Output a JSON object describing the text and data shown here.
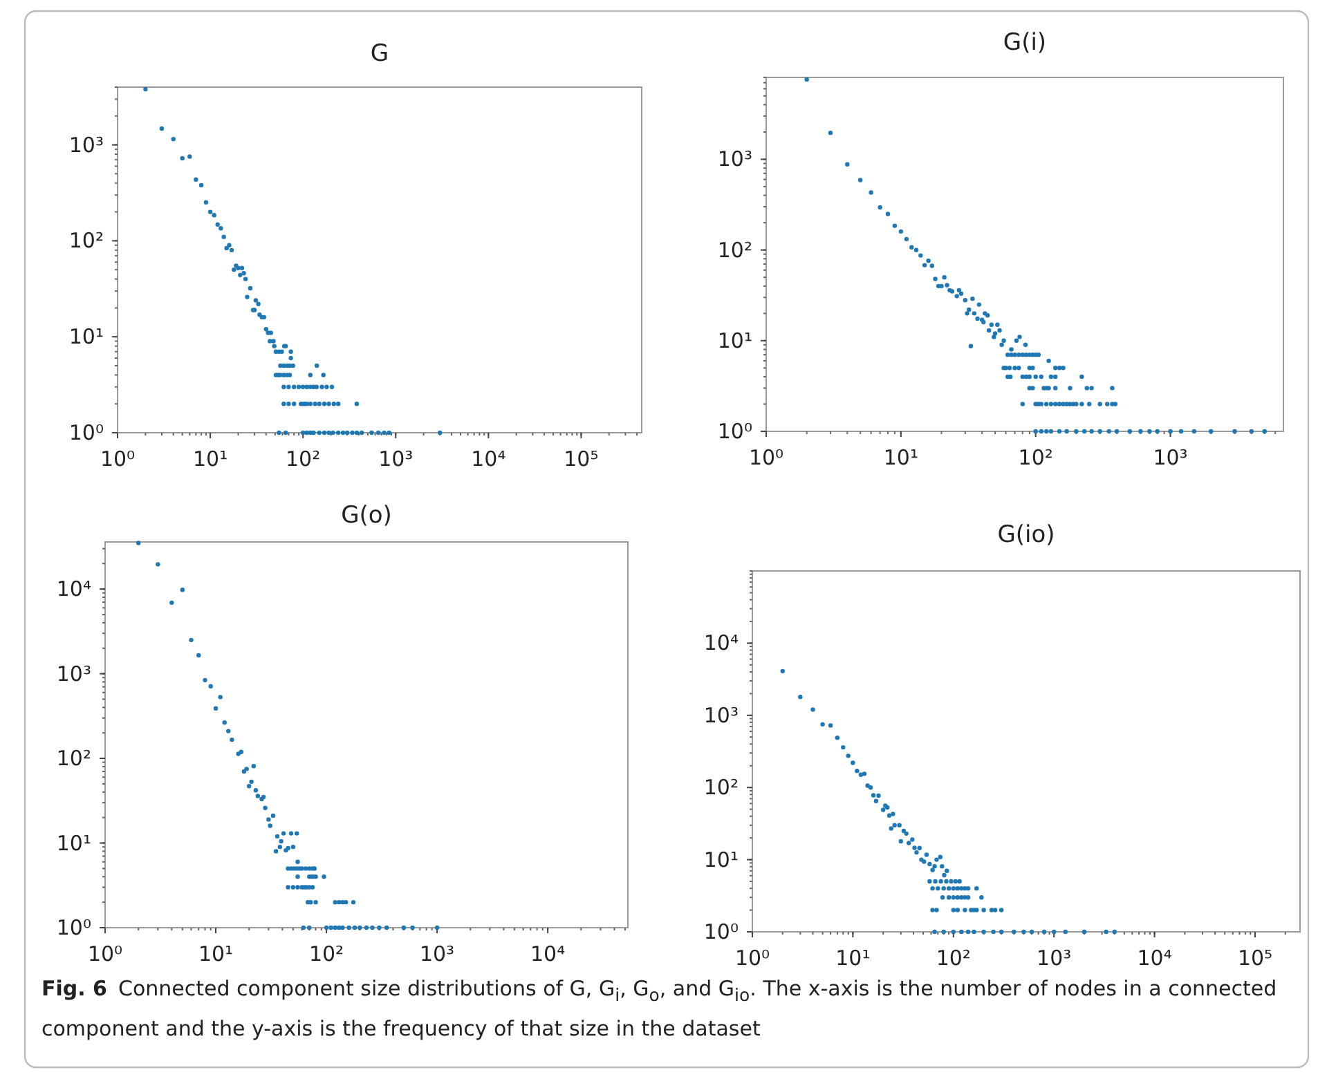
{
  "chart_data": [
    {
      "type": "scatter",
      "title": "G",
      "log": "xy",
      "marker": "circle",
      "color": "#1f77b4",
      "xlim": [
        1,
        450000
      ],
      "ylim": [
        1,
        4000
      ],
      "xticks": [
        {
          "value": 1,
          "label": "10⁰"
        },
        {
          "value": 10,
          "label": "10¹"
        },
        {
          "value": 100,
          "label": "10²"
        },
        {
          "value": 1000,
          "label": "10³"
        },
        {
          "value": 10000,
          "label": "10⁴"
        },
        {
          "value": 100000,
          "label": "10⁵"
        }
      ],
      "yticks": [
        {
          "value": 1,
          "label": "10⁰"
        },
        {
          "value": 10,
          "label": "10¹"
        },
        {
          "value": 100,
          "label": "10²"
        },
        {
          "value": 1000,
          "label": "10³"
        }
      ],
      "x": [
        2,
        3,
        4,
        5,
        6,
        7,
        8,
        9,
        10,
        11,
        12,
        13,
        14,
        15,
        16,
        17,
        18,
        19,
        20,
        21,
        22,
        23,
        24,
        25,
        27,
        29,
        30,
        31,
        33,
        34,
        36,
        38,
        40,
        42,
        44,
        45,
        48,
        49,
        51,
        55,
        59,
        63,
        65,
        74,
        74,
        57,
        62,
        67,
        72,
        78,
        141,
        51,
        54,
        57,
        62,
        67,
        72,
        120,
        166,
        62,
        70,
        80,
        90,
        100,
        110,
        120,
        130,
        140,
        160,
        180,
        205,
        62,
        70,
        80,
        95,
        100,
        105,
        110,
        120,
        135,
        150,
        170,
        190,
        215,
        240,
        380,
        55,
        65,
        100,
        110,
        120,
        130,
        150,
        170,
        190,
        210,
        240,
        270,
        300,
        340,
        380,
        430,
        550,
        650,
        750,
        850,
        3000
      ],
      "values": [
        3800,
        1480,
        1150,
        725,
        755,
        435,
        380,
        252,
        200,
        185,
        148,
        135,
        110,
        84,
        90,
        80,
        50,
        55,
        52,
        44,
        52,
        46,
        40,
        26,
        32,
        19,
        19,
        24,
        22,
        17,
        16,
        16,
        12,
        11,
        9,
        11,
        9,
        8,
        7,
        7,
        7,
        8,
        8,
        7,
        6,
        5,
        5,
        5,
        5,
        5,
        5,
        4,
        4,
        4,
        4,
        4,
        4,
        4,
        4,
        3,
        3,
        3,
        3,
        3,
        3,
        3,
        3,
        3,
        3,
        3,
        3,
        2,
        2,
        2,
        2,
        2,
        2,
        2,
        2,
        2,
        2,
        2,
        2,
        2,
        2,
        2,
        1,
        1,
        1,
        1,
        1,
        1,
        1,
        1,
        1,
        1,
        1,
        1,
        1,
        1,
        1,
        1,
        1,
        1,
        1,
        1,
        1
      ],
      "annotations": [
        "Fig. 6",
        "Connected component size distributions of G, G$_{i}$, G$_{o}$, and G$_{io}$. The x-axis is the number of nodes in a connected component and the y-axis is the frequency of that size in the dataset"
      ]
    },
    {
      "type": "scatter",
      "title": "G(i)",
      "log": "xy",
      "marker": "circle",
      "color": "#1f77b4",
      "xlim": [
        1,
        6900
      ],
      "ylim": [
        1,
        8000
      ],
      "xticks": [
        {
          "value": 1,
          "label": "10⁰"
        },
        {
          "value": 10,
          "label": "10¹"
        },
        {
          "value": 100,
          "label": "10²"
        },
        {
          "value": 1000,
          "label": "10³"
        }
      ],
      "yticks": [
        {
          "value": 1,
          "label": "10⁰"
        },
        {
          "value": 10,
          "label": "10¹"
        },
        {
          "value": 100,
          "label": "10²"
        },
        {
          "value": 1000,
          "label": "10³"
        }
      ],
      "x": [
        2,
        3,
        4,
        5,
        6,
        7,
        8,
        9,
        10,
        11,
        12,
        13,
        14,
        15,
        16,
        17,
        18,
        19,
        20,
        21,
        22,
        23,
        24,
        26,
        27,
        28,
        30,
        31,
        32,
        33,
        34,
        35,
        37,
        38,
        40,
        41,
        42,
        44,
        45,
        47,
        49,
        50,
        52,
        54,
        56,
        58,
        64,
        66,
        72,
        76,
        84,
        62,
        66,
        70,
        75,
        80,
        85,
        90,
        95,
        100,
        105,
        125,
        58,
        60,
        70,
        75,
        90,
        95,
        140,
        150,
        160,
        62,
        65,
        80,
        85,
        90,
        100,
        110,
        130,
        140,
        220,
        90,
        95,
        115,
        120,
        125,
        140,
        180,
        240,
        260,
        370,
        80,
        100,
        105,
        110,
        120,
        130,
        140,
        150,
        160,
        170,
        180,
        190,
        200,
        220,
        250,
        300,
        340,
        370,
        390,
        100,
        110,
        120,
        130,
        150,
        170,
        200,
        230,
        260,
        300,
        350,
        400,
        500,
        600,
        700,
        800,
        1000,
        1200,
        1500,
        2000,
        3000,
        4000,
        5000
      ],
      "values": [
        7600,
        1960,
        880,
        590,
        430,
        295,
        250,
        185,
        160,
        132,
        107,
        100,
        87,
        68,
        76,
        67,
        48,
        40,
        40,
        50,
        41,
        36,
        35,
        31,
        36,
        33,
        28,
        20,
        22,
        8.7,
        29,
        20,
        17.5,
        25,
        17,
        16,
        20,
        19,
        13,
        15,
        11,
        12,
        15,
        13,
        9,
        10,
        5,
        8,
        10,
        11,
        9,
        7,
        7,
        7,
        7,
        7,
        7,
        7,
        7,
        7,
        7,
        6,
        5,
        5,
        5,
        5,
        5,
        5,
        5,
        5,
        5,
        4,
        4,
        4,
        4,
        4,
        4,
        4,
        4,
        4,
        4,
        3,
        3,
        3,
        3,
        3,
        3,
        3,
        3,
        3,
        3,
        2,
        2,
        2,
        2,
        2,
        2,
        2,
        2,
        2,
        2,
        2,
        2,
        2,
        2,
        2,
        2,
        2,
        2,
        2,
        1,
        1,
        1,
        1,
        1,
        1,
        1,
        1,
        1,
        1,
        1,
        1,
        1,
        1,
        1,
        1,
        1,
        1,
        1,
        1,
        1,
        1,
        1
      ]
    },
    {
      "type": "scatter",
      "title": "G(o)",
      "log": "xy",
      "marker": "circle",
      "color": "#1f77b4",
      "xlim": [
        1,
        53000
      ],
      "ylim": [
        1,
        36000
      ],
      "xticks": [
        {
          "value": 1,
          "label": "10⁰"
        },
        {
          "value": 10,
          "label": "10¹"
        },
        {
          "value": 100,
          "label": "10²"
        },
        {
          "value": 1000,
          "label": "10³"
        },
        {
          "value": 10000,
          "label": "10⁴"
        }
      ],
      "yticks": [
        {
          "value": 1,
          "label": "10⁰"
        },
        {
          "value": 10,
          "label": "10¹"
        },
        {
          "value": 100,
          "label": "10²"
        },
        {
          "value": 1000,
          "label": "10³"
        },
        {
          "value": 10000,
          "label": "10⁴"
        }
      ],
      "x": [
        2,
        3,
        4,
        5,
        6,
        7,
        8,
        9,
        10,
        11,
        12,
        13,
        14,
        16,
        17,
        18,
        19,
        20,
        21,
        22,
        23,
        24,
        26,
        27,
        28,
        30,
        31,
        33,
        35,
        36,
        38,
        39,
        41,
        43,
        45,
        48,
        50,
        54,
        55,
        45,
        48,
        51,
        54,
        57,
        60,
        65,
        70,
        75,
        78,
        55,
        70,
        73,
        76,
        80,
        95,
        45,
        50,
        55,
        60,
        63,
        66,
        70,
        75,
        68,
        72,
        80,
        120,
        130,
        140,
        150,
        175,
        62,
        70,
        100,
        110,
        120,
        130,
        140,
        160,
        180,
        200,
        230,
        260,
        300,
        350,
        500,
        600,
        1000
      ],
      "values": [
        35000,
        19600,
        6900,
        9800,
        2500,
        1650,
        840,
        710,
        390,
        530,
        265,
        210,
        166,
        113,
        119,
        70,
        75,
        47,
        53,
        81,
        42,
        36,
        33,
        35,
        26,
        19,
        16,
        21,
        8,
        12,
        9,
        10.5,
        13,
        8.2,
        8.7,
        13,
        9,
        13,
        6,
        5,
        5,
        5,
        5,
        5,
        5,
        5,
        5,
        5,
        5,
        4,
        4,
        4,
        4,
        4,
        4,
        3,
        3,
        3,
        3,
        3,
        3,
        3,
        3,
        2,
        2,
        2,
        2,
        2,
        2,
        2,
        2,
        1,
        1,
        1,
        1,
        1,
        1,
        1,
        1,
        1,
        1,
        1,
        1,
        1,
        1,
        1,
        1,
        1
      ]
    },
    {
      "type": "scatter",
      "title": "G(io)",
      "log": "xy",
      "marker": "circle",
      "color": "#1f77b4",
      "xlim": [
        1,
        280000
      ],
      "ylim": [
        1,
        100000
      ],
      "xticks": [
        {
          "value": 1,
          "label": "10⁰"
        },
        {
          "value": 10,
          "label": "10¹"
        },
        {
          "value": 100,
          "label": "10²"
        },
        {
          "value": 1000,
          "label": "10³"
        },
        {
          "value": 10000,
          "label": "10⁴"
        },
        {
          "value": 100000,
          "label": "10⁵"
        }
      ],
      "yticks": [
        {
          "value": 1,
          "label": "10⁰"
        },
        {
          "value": 10,
          "label": "10¹"
        },
        {
          "value": 100,
          "label": "10²"
        },
        {
          "value": 1000,
          "label": "10³"
        },
        {
          "value": 10000,
          "label": "10⁴"
        }
      ],
      "x": [
        2,
        3,
        4,
        5,
        6,
        7,
        8,
        9,
        10,
        11,
        12,
        13,
        14,
        15,
        16,
        17,
        18,
        20,
        21,
        22,
        23,
        24,
        25,
        26,
        29,
        30,
        32,
        34,
        36,
        39,
        41,
        43,
        46,
        48,
        51,
        54,
        58,
        62,
        65,
        68,
        74,
        77,
        81,
        86,
        58,
        66,
        75,
        85,
        95,
        105,
        115,
        62,
        70,
        80,
        90,
        100,
        110,
        120,
        130,
        140,
        170,
        78,
        90,
        100,
        110,
        120,
        130,
        140,
        190,
        62,
        68,
        100,
        110,
        130,
        150,
        160,
        170,
        200,
        240,
        260,
        300,
        65,
        80,
        100,
        120,
        140,
        160,
        200,
        250,
        300,
        400,
        500,
        600,
        800,
        1000,
        1300,
        2000,
        3300,
        4000
      ],
      "values": [
        4100,
        1800,
        1200,
        750,
        725,
        490,
        360,
        275,
        220,
        170,
        150,
        155,
        106,
        100,
        78,
        65,
        77,
        49,
        56,
        53,
        41,
        27,
        43,
        30,
        30,
        18,
        25,
        23,
        17,
        19,
        14.6,
        12.6,
        14.5,
        10,
        9.4,
        11.7,
        8.7,
        7.2,
        8.1,
        10,
        10.9,
        8.1,
        6.1,
        7,
        5,
        5,
        5,
        5,
        5,
        5,
        5,
        4,
        4,
        4,
        4,
        4,
        4,
        4,
        4,
        4,
        4,
        3,
        3,
        3,
        3,
        3,
        3,
        3,
        3,
        2,
        2,
        2,
        2,
        2,
        2,
        2,
        2,
        2,
        2,
        2,
        2,
        1,
        1,
        1,
        1,
        1,
        1,
        1,
        1,
        1,
        1,
        1,
        1,
        1,
        1,
        1,
        1,
        1,
        1
      ]
    }
  ]
}
